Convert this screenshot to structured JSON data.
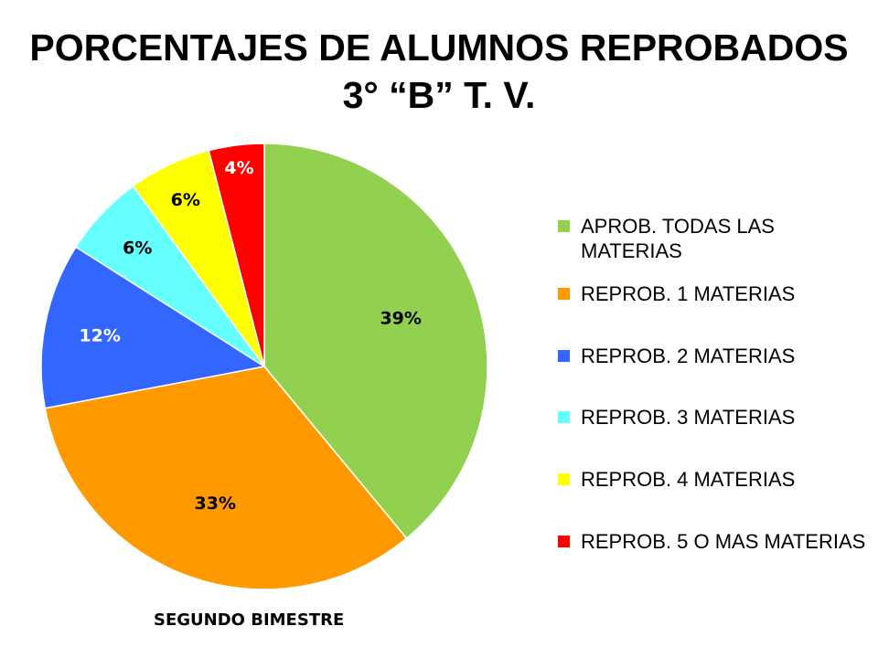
{
  "chart_data": {
    "type": "pie",
    "title_line1": "PORCENTAJES DE ALUMNOS REPROBADOS",
    "title_line2": "3° “B” T. V.",
    "caption": "SEGUNDO BIMESTRE",
    "legend_position": "right",
    "slices": [
      {
        "label": "APROB. TODAS LAS MATERIAS",
        "value": 39,
        "display": "39%",
        "color": "#92D050",
        "label_color": "#000000"
      },
      {
        "label": "REPROB. 1 MATERIAS",
        "value": 33,
        "display": "33%",
        "color": "#FF9900",
        "label_color": "#000000"
      },
      {
        "label": "REPROB. 2 MATERIAS",
        "value": 12,
        "display": "12%",
        "color": "#3366FF",
        "label_color": "#FFFFFF"
      },
      {
        "label": "REPROB. 3 MATERIAS",
        "value": 6,
        "display": "6%",
        "color": "#66FFFF",
        "label_color": "#000000"
      },
      {
        "label": "REPROB. 4 MATERIAS",
        "value": 6,
        "display": "6%",
        "color": "#FFFF00",
        "label_color": "#000000"
      },
      {
        "label": "REPROB. 5 O MAS MATERIAS",
        "value": 4,
        "display": "4%",
        "color": "#FF0000",
        "label_color": "#FFFFFF"
      }
    ]
  }
}
